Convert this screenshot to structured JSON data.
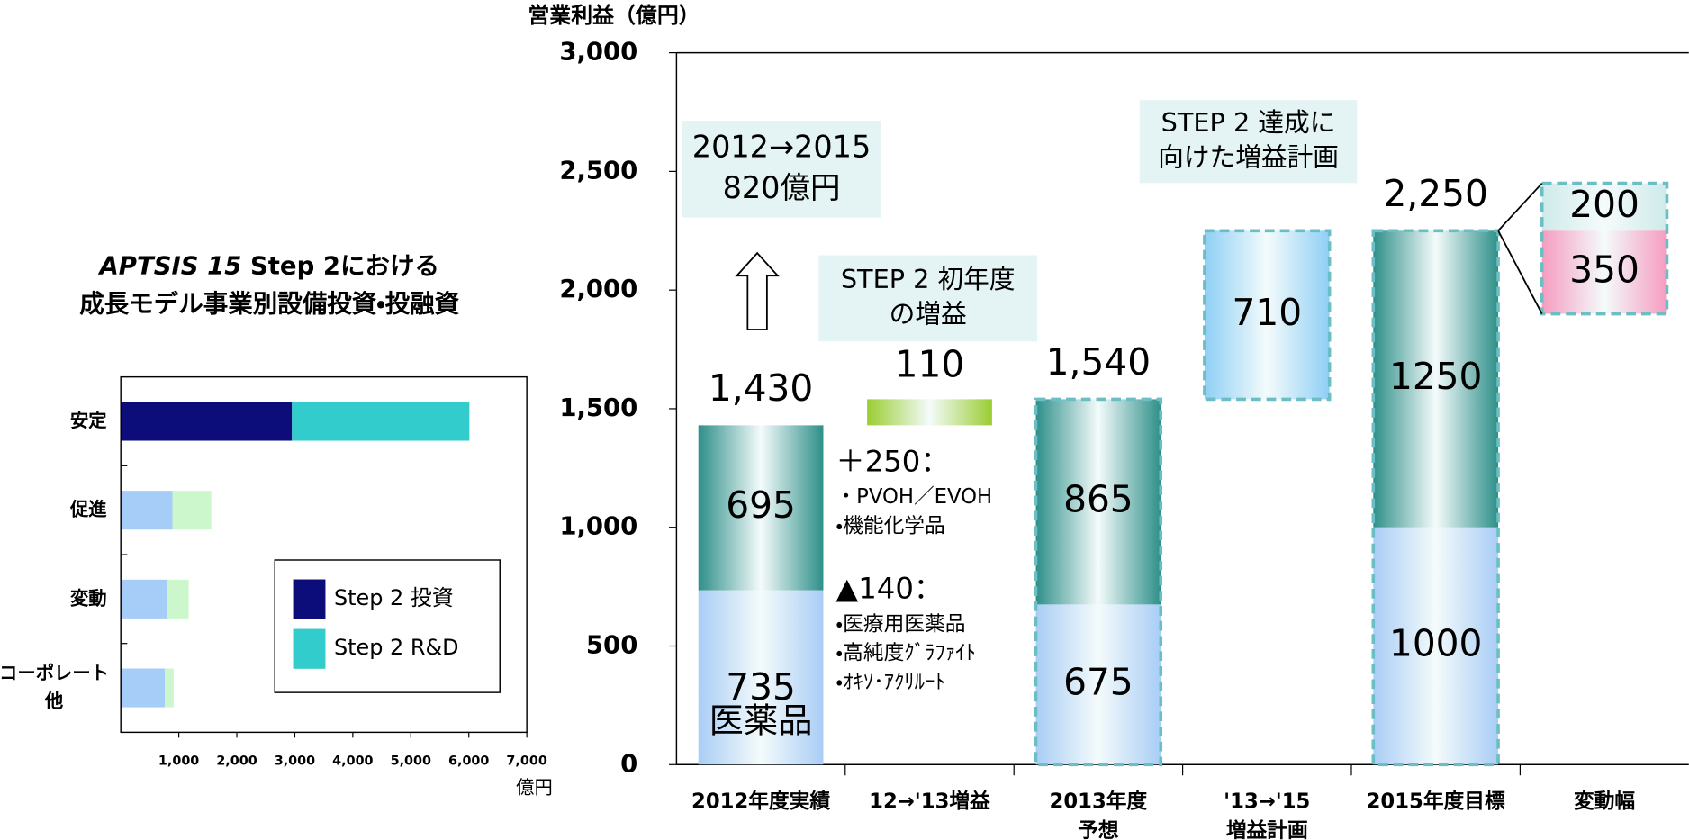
{
  "chart_data": [
    {
      "type": "hbar_stacked",
      "title": [
        "APTSIS 15",
        "Step 2における",
        "成長モデル事業別設備投資・投融資"
      ],
      "categories": [
        [
          "安定"
        ],
        [
          "促進"
        ],
        [
          "変動"
        ],
        [
          "コーポレート",
          "他"
        ]
      ],
      "series": [
        {
          "name": "Step 2 投資",
          "color": "#0c0c7a",
          "colors": [
            "#0c0c7a",
            "#a6cdf7",
            "#a6cdf7",
            "#a6cdf7"
          ],
          "values": [
            2950,
            890,
            800,
            760
          ]
        },
        {
          "name": "Step 2 R&D",
          "color": "#33cccc",
          "colors": [
            "#33cccc",
            "#ccf7cc",
            "#ccf7cc",
            "#ccf7cc"
          ],
          "values": [
            3060,
            670,
            370,
            150
          ]
        }
      ],
      "xlim": [
        0,
        7000
      ],
      "xticks": [
        {
          "value": 1000,
          "label": "1,000"
        },
        {
          "value": 2000,
          "label": "2,000"
        },
        {
          "value": 3000,
          "label": "3,000"
        },
        {
          "value": 4000,
          "label": "4,000"
        },
        {
          "value": 5000,
          "label": "5,000"
        },
        {
          "value": 6000,
          "label": "6,000"
        },
        {
          "value": 7000,
          "label": "7,000"
        }
      ],
      "xlabel": "億円",
      "legend": "lower-right"
    },
    {
      "type": "waterfall",
      "ylabel": "営業利益（億円）",
      "ylim": [
        0,
        3000
      ],
      "yticks": [
        0,
        500,
        {
          "value": 1000,
          "label": "1,000"
        },
        {
          "value": 1500,
          "label": "1,500"
        },
        {
          "value": 2000,
          "label": "2,000"
        },
        {
          "value": 2500,
          "label": "2,500"
        },
        {
          "value": 3000,
          "label": "3,000"
        }
      ],
      "categories": [
        [
          "2012年度実績"
        ],
        [
          "12→'13増益"
        ],
        [
          "2013年度",
          "予想"
        ],
        [
          "'13→'15",
          "増益計画"
        ],
        [
          "2015年度目標"
        ],
        [
          "変動幅"
        ]
      ],
      "columns": [
        {
          "style": "stack",
          "values": [
            735,
            695
          ],
          "colors": [
            "#a9cdf5",
            "#2e8f89"
          ],
          "segment_name": "医薬品",
          "total": 1430,
          "total_label": "1,430",
          "dashed": false
        },
        {
          "style": "step",
          "values": [
            110
          ],
          "colors": [
            "#9acd32"
          ],
          "dashed": false
        },
        {
          "style": "stack",
          "values": [
            675,
            865
          ],
          "colors": [
            "#a9cdf5",
            "#2e8f89"
          ],
          "total": 1540,
          "total_label": "1,540",
          "dashed": true
        },
        {
          "style": "step",
          "values": [
            710
          ],
          "colors": [
            "#8fcff5"
          ],
          "dashed": true
        },
        {
          "style": "stack",
          "values": [
            1000,
            1250
          ],
          "colors": [
            "#a9cdf5",
            "#2e8f89"
          ],
          "total": 2250,
          "total_label": "2,250",
          "dashed": true
        },
        {
          "style": "range",
          "values": [
            200,
            350
          ],
          "colors": [
            "#cfeaea",
            "#f59cc0"
          ],
          "dashed": true
        }
      ],
      "boxes": [
        [
          "2012→2015",
          "820億円"
        ],
        [
          "STEP 2 初年度",
          "の増益"
        ],
        [
          "STEP 2 達成に",
          "向けた増益計画"
        ]
      ],
      "notes": [
        {
          "heading": "＋250：",
          "items": [
            "・PVOH／EVOH",
            "・機能化学品"
          ]
        },
        {
          "heading": "▲140：",
          "items": [
            "・医療用医薬品",
            "・高純度ｸﾞﾗﾌｧｲﾄ",
            "・ｵｷｿ･ｱｸﾘﾙｰﾄ"
          ]
        }
      ]
    }
  ]
}
